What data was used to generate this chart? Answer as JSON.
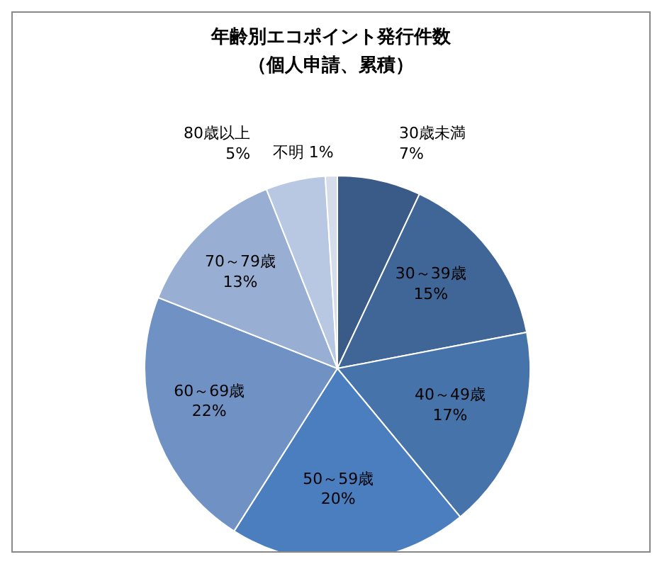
{
  "chart_data": {
    "type": "pie",
    "title": "年齢別エコポイント発行件数",
    "subtitle": "（個人申請、累積）",
    "categories": [
      "30歳未満",
      "30～39歳",
      "40～49歳",
      "50～59歳",
      "60～69歳",
      "70～79歳",
      "80歳以上",
      "不明"
    ],
    "values": [
      7,
      15,
      17,
      20,
      22,
      13,
      5,
      1
    ],
    "colors": [
      "#3a5a87",
      "#3f6696",
      "#4674aa",
      "#4a7ebf",
      "#6f91c4",
      "#98aed3",
      "#b9c8e2",
      "#d5dcea"
    ],
    "value_labels": [
      "7%",
      "15%",
      "17%",
      "20%",
      "22%",
      "13%",
      "5%",
      "1%"
    ],
    "legend": false
  }
}
